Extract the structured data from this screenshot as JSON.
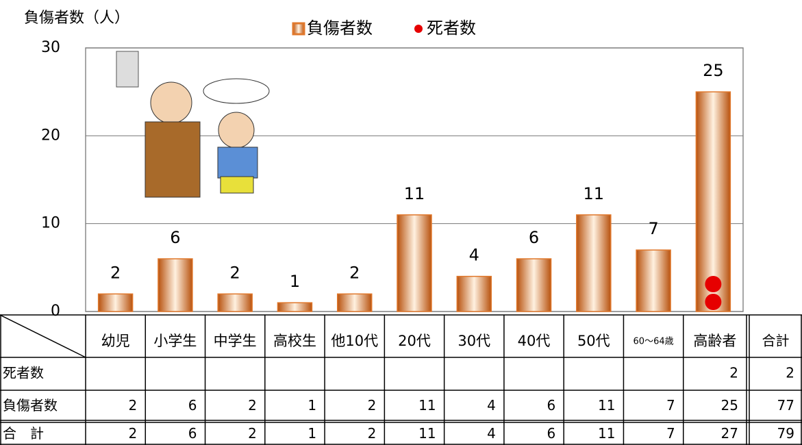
{
  "chart_data": {
    "type": "bar",
    "y_axis_label": "負傷者数（人）",
    "categories": [
      "幼児",
      "小学生",
      "中学生",
      "高校生",
      "他10代",
      "20代",
      "30代",
      "40代",
      "50代",
      "60～64歳",
      "高齢者"
    ],
    "series": [
      {
        "name": "負傷者数",
        "color": "#e0782c",
        "values": [
          2,
          6,
          2,
          1,
          2,
          11,
          4,
          6,
          11,
          7,
          25
        ]
      },
      {
        "name": "死者数",
        "type": "dot",
        "color": "#e60000",
        "values": [
          null,
          null,
          null,
          null,
          null,
          null,
          null,
          null,
          null,
          null,
          2
        ]
      }
    ],
    "ylim": [
      0,
      30
    ],
    "yticks": [
      0,
      10,
      20,
      30
    ],
    "grid": true,
    "legend": "top"
  },
  "table": {
    "total_header": "合計",
    "row_labels": [
      "死者数",
      "負傷者数",
      "合　計"
    ],
    "total_row": [
      2,
      6,
      2,
      1,
      2,
      11,
      4,
      6,
      11,
      7,
      27
    ],
    "totals": [
      2,
      77,
      79
    ]
  }
}
